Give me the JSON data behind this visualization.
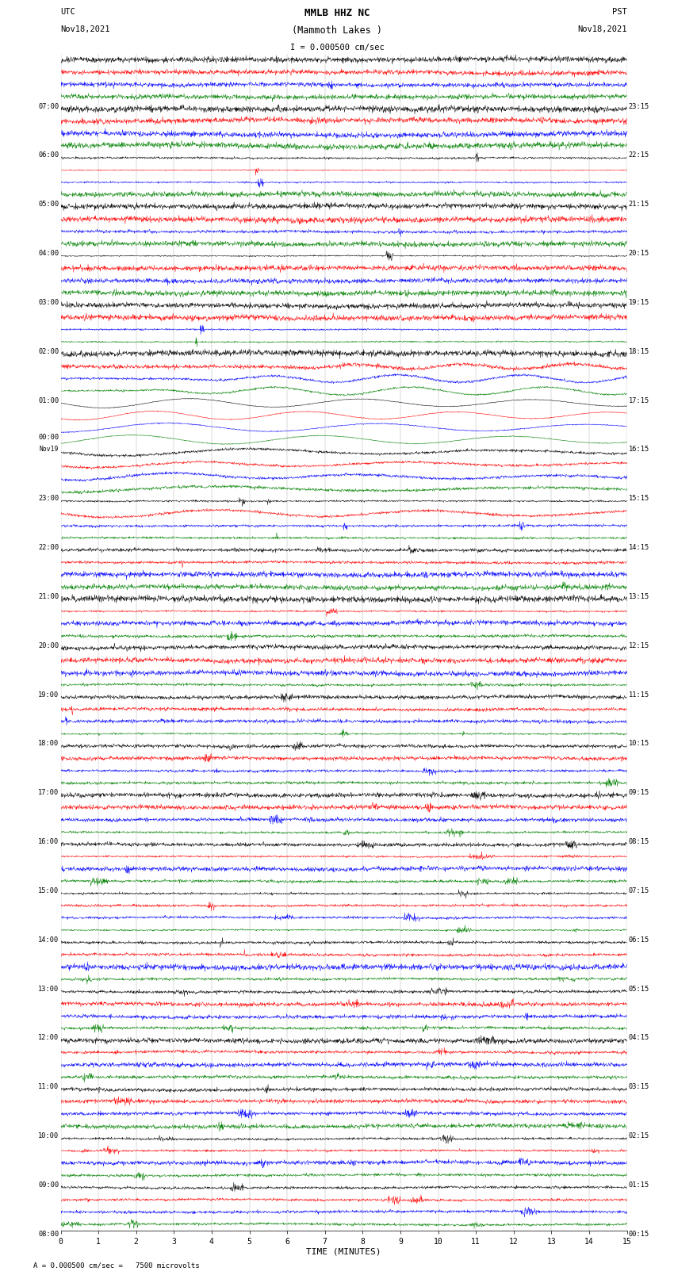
{
  "title_line1": "MMLB HHZ NC",
  "title_line2": "(Mammoth Lakes )",
  "scale_text": "I = 0.000500 cm/sec",
  "utc_label": "UTC",
  "utc_date": "Nov18,2021",
  "pst_label": "PST",
  "pst_date": "Nov18,2021",
  "xlabel": "TIME (MINUTES)",
  "footer": "= 0.000500 cm/sec =   7500 microvolts",
  "footer_marker": "A",
  "bg_color": "#ffffff",
  "line_colors": [
    "black",
    "red",
    "blue",
    "green"
  ],
  "n_rows": 96,
  "xmin": 0,
  "xmax": 15,
  "figwidth": 8.5,
  "figheight": 16.13,
  "left_labels_utc": [
    "08:00",
    "09:00",
    "10:00",
    "11:00",
    "12:00",
    "13:00",
    "14:00",
    "15:00",
    "16:00",
    "17:00",
    "18:00",
    "19:00",
    "20:00",
    "21:00",
    "22:00",
    "23:00",
    "Nov19\n00:00",
    "01:00",
    "02:00",
    "03:00",
    "04:00",
    "05:00",
    "06:00",
    "07:00"
  ],
  "right_labels_pst": [
    "00:15",
    "01:15",
    "02:15",
    "03:15",
    "04:15",
    "05:15",
    "06:15",
    "07:15",
    "08:15",
    "09:15",
    "10:15",
    "11:15",
    "12:15",
    "13:15",
    "14:15",
    "15:15",
    "16:15",
    "17:15",
    "18:15",
    "19:15",
    "20:15",
    "21:15",
    "22:15",
    "23:15"
  ]
}
